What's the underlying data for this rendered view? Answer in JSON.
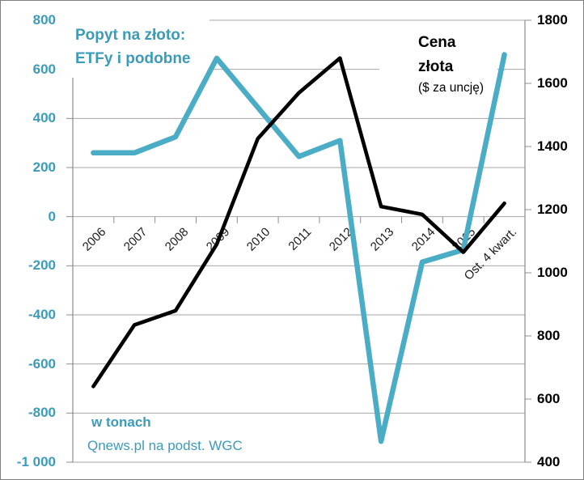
{
  "chart_data": {
    "type": "line",
    "categories": [
      "2006",
      "2007",
      "2008",
      "2009",
      "2010",
      "2011",
      "2012",
      "2013",
      "2014",
      "2015",
      "Ost. 4 kwart."
    ],
    "series": [
      {
        "name": "Popyt na złoto: ETFy i podobne",
        "axis": "left",
        "color": "#4BACC6",
        "stroke_width": 6.5,
        "values": [
          260,
          260,
          325,
          645,
          445,
          245,
          310,
          -915,
          -185,
          -135,
          660
        ]
      },
      {
        "name": "Cena złota ($ za uncję)",
        "axis": "right",
        "color": "#000000",
        "stroke_width": 4.6,
        "values": [
          640,
          835,
          880,
          1090,
          1425,
          1570,
          1680,
          1210,
          1185,
          1065,
          1220
        ]
      }
    ],
    "left_axis": {
      "min": -1000,
      "max": 800,
      "step": 200,
      "tick_labels": [
        "800",
        "600",
        "400",
        "200",
        "0",
        "-200",
        "-400",
        "-600",
        "-800",
        "-1 000"
      ]
    },
    "right_axis": {
      "min": 400,
      "max": 1800,
      "step": 200,
      "tick_labels": [
        "1800",
        "1600",
        "1400",
        "1200",
        "1000",
        "800",
        "600",
        "400"
      ]
    },
    "grid": true,
    "legend_position": "none"
  },
  "labels": {
    "series1_title_line1": "Popyt na złoto:",
    "series1_title_line2": "ETFy i podobne",
    "series2_title_line1": "Cena",
    "series2_title_line2": "złota",
    "series2_title_line3": "($ za uncję)",
    "unit_note": "w tonach",
    "source_note": "Qnews.pl na podst. WGC"
  },
  "colors": {
    "series1": "#4BACC6",
    "series2": "#000000",
    "teal_text": "#3C9BB9",
    "gridline": "#A6A6A6",
    "axis_line": "#8C8C8C",
    "border": "#7F7F7F"
  }
}
